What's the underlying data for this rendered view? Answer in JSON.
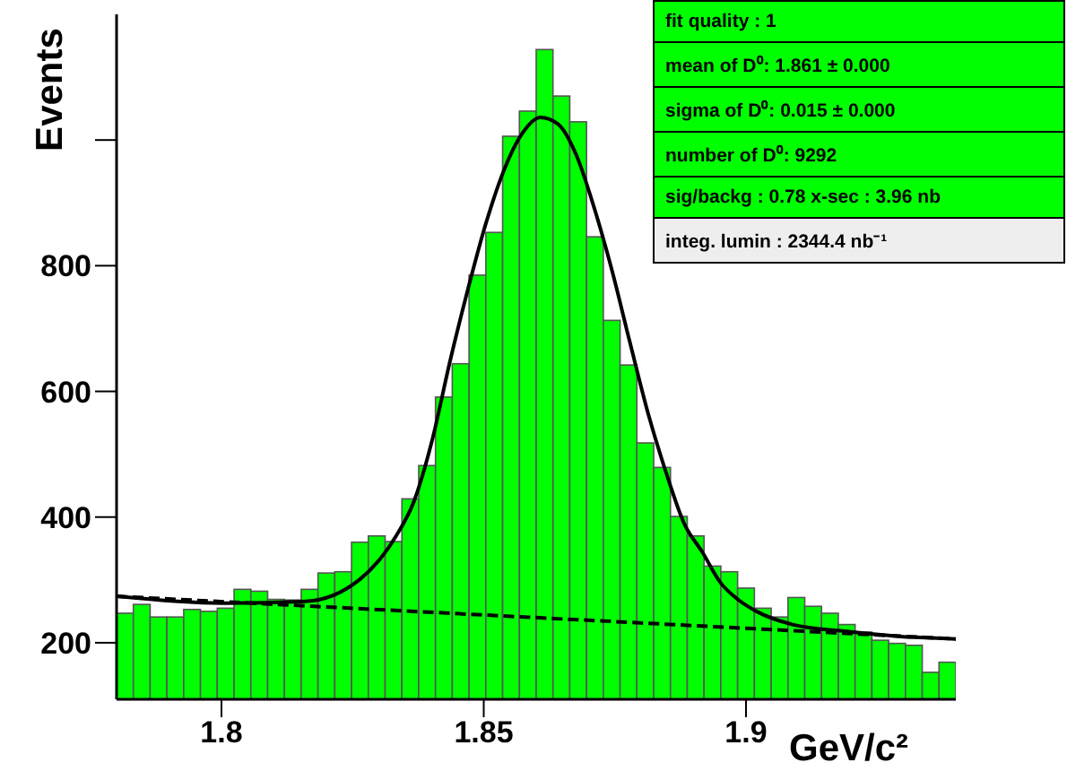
{
  "chart_data": {
    "type": "histogram",
    "xlabel": "GeV/c²",
    "ylabel": "Events",
    "color": "#00ff00",
    "bins": [
      1.78,
      1.7832,
      1.7864,
      1.7896,
      1.7928,
      1.796,
      1.7992,
      1.8024,
      1.8056,
      1.8088,
      1.812,
      1.8152,
      1.8184,
      1.8216,
      1.8248,
      1.828,
      1.8312,
      1.8344,
      1.8376,
      1.8408,
      1.844,
      1.8472,
      1.8504,
      1.8536,
      1.8568,
      1.86,
      1.8632,
      1.8664,
      1.8696,
      1.8728,
      1.876,
      1.8792,
      1.8824,
      1.8856,
      1.8888,
      1.892,
      1.8952,
      1.8984,
      1.9016,
      1.9048,
      1.908,
      1.9112,
      1.9144,
      1.9176,
      1.9208,
      1.924,
      1.9272,
      1.9304,
      1.9336,
      1.9368,
      1.94
    ],
    "values": [
      247,
      261,
      241,
      241,
      253,
      250,
      255,
      285,
      282,
      269,
      268,
      285,
      311,
      313,
      360,
      370,
      361,
      429,
      482,
      591,
      644,
      785,
      853,
      1006,
      1046,
      1144,
      1070,
      1029,
      846,
      713,
      642,
      518,
      479,
      401,
      370,
      322,
      313,
      287,
      255,
      241,
      272,
      258,
      247,
      229,
      217,
      204,
      199,
      196,
      153,
      169
    ],
    "series": [
      {
        "type": "line",
        "color": "#000000",
        "line_style": "solid",
        "x": [
          1.78,
          1.8,
          1.8161,
          1.8264,
          1.8333,
          1.8367,
          1.8401,
          1.8436,
          1.847,
          1.8504,
          1.8539,
          1.8573,
          1.8608,
          1.8642,
          1.8676,
          1.8711,
          1.8745,
          1.8779,
          1.8814,
          1.8848,
          1.8882,
          1.8917,
          1.8951,
          1.8986,
          1.902,
          1.9089,
          1.9192,
          1.9295,
          1.94
        ],
        "values": [
          274,
          263,
          266,
          301,
          370,
          425,
          520,
          649,
          763,
          867,
          953,
          1010,
          1036,
          1025,
          977,
          891,
          791,
          677,
          563,
          470,
          390,
          344,
          296,
          268,
          250,
          229,
          218,
          210,
          206
        ]
      },
      {
        "type": "line",
        "color": "#000000",
        "line_style": "dashed",
        "x": [
          1.78,
          1.94
        ],
        "values": [
          274,
          206
        ]
      }
    ],
    "xlim": [
      1.78,
      1.94
    ],
    "ylim": [
      110,
      1200
    ],
    "xticks": [
      1.8,
      1.85,
      1.9
    ],
    "yticks": [
      200,
      400,
      600,
      800,
      {
        "value": 1000,
        "label": null
      }
    ],
    "annotations": [
      "fit quality  :  1",
      "mean  of D⁰:  1.861 ± 0.000",
      "sigma of D⁰:  0.015 ± 0.000",
      "number of D⁰:  9292",
      "sig/backg :  0.78   x-sec : 3.96 nb",
      "integ. lumin :  2344.4 nb⁻¹"
    ]
  }
}
